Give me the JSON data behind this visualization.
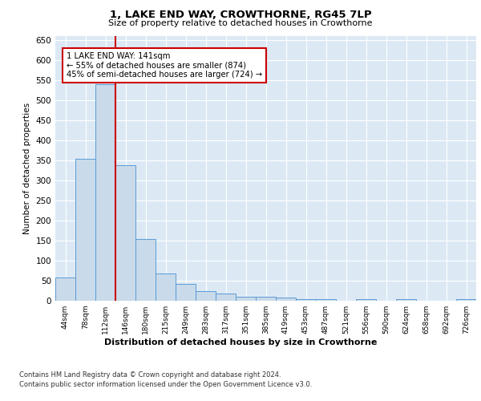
{
  "title1": "1, LAKE END WAY, CROWTHORNE, RG45 7LP",
  "title2": "Size of property relative to detached houses in Crowthorne",
  "xlabel": "Distribution of detached houses by size in Crowthorne",
  "ylabel": "Number of detached properties",
  "bins": [
    "44sqm",
    "78sqm",
    "112sqm",
    "146sqm",
    "180sqm",
    "215sqm",
    "249sqm",
    "283sqm",
    "317sqm",
    "351sqm",
    "385sqm",
    "419sqm",
    "453sqm",
    "487sqm",
    "521sqm",
    "556sqm",
    "590sqm",
    "624sqm",
    "658sqm",
    "692sqm",
    "726sqm"
  ],
  "values": [
    58,
    355,
    540,
    338,
    155,
    68,
    42,
    24,
    19,
    10,
    10,
    8,
    5,
    4,
    0,
    4,
    0,
    5,
    0,
    0,
    4
  ],
  "bar_color": "#c9daea",
  "bar_edge_color": "#5b9bd5",
  "property_line_x": 2.5,
  "property_line_color": "#cc0000",
  "annotation_text": "1 LAKE END WAY: 141sqm\n← 55% of detached houses are smaller (874)\n45% of semi-detached houses are larger (724) →",
  "annotation_box_color": "#ffffff",
  "annotation_box_edge": "#cc0000",
  "ylim": [
    0,
    660
  ],
  "yticks": [
    0,
    50,
    100,
    150,
    200,
    250,
    300,
    350,
    400,
    450,
    500,
    550,
    600,
    650
  ],
  "footer1": "Contains HM Land Registry data © Crown copyright and database right 2024.",
  "footer2": "Contains public sector information licensed under the Open Government Licence v3.0.",
  "plot_bg_color": "#dce9f5"
}
